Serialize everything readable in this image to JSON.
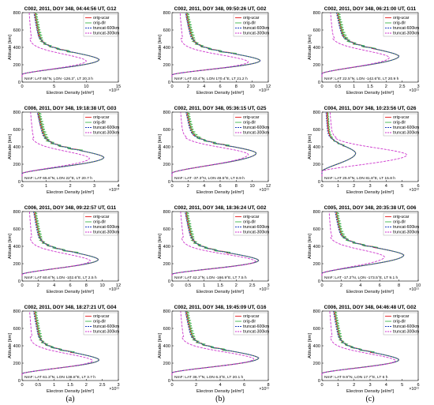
{
  "legend_labels": [
    "orig-ucar",
    "orig-dlr",
    "truncat-600km",
    "truncat-300km"
  ],
  "series_colors": [
    "#e41a1c",
    "#3cb44b",
    "#1f3fbf",
    "#cc33cc"
  ],
  "column_labels": [
    "(a)",
    "(b)",
    "(c)"
  ],
  "chart_data": [
    {
      "type": "line",
      "title": "C002, 2011, DOY 348, 04:44:56 UT, G12",
      "xlabel": "Electron Density [el/m³]",
      "ylabel": "Altitude [km]",
      "multiplier": "×10¹⁰",
      "note": "NmF: LAT 65°N, LON -126.3°, LT 20.3 h",
      "xlim": [
        0,
        15
      ],
      "ylim": [
        0,
        800
      ],
      "xticks": [
        "0",
        "5",
        "10",
        "15"
      ],
      "yticks": [
        "0",
        "200",
        "400",
        "600",
        "800"
      ],
      "peak": {
        "n": 12,
        "h": 260,
        "h0": 90,
        "top": 0.3,
        "w": 0.85
      },
      "trunc300": {
        "n": 10,
        "h": 245
      }
    },
    {
      "type": "line",
      "title": "C002, 2011, DOY 348, 09:50:26 UT, G02",
      "xlabel": "Electron Density [el/m³]",
      "ylabel": "Altitude [km]",
      "multiplier": "×10¹⁰",
      "note": "NmF: LAT 43.4°N, LON 170.4°E, LT 21.2 h",
      "xlim": [
        0,
        12
      ],
      "ylim": [
        0,
        800
      ],
      "xticks": [
        "0",
        "2",
        "4",
        "6",
        "8",
        "10",
        "12"
      ],
      "yticks": [
        "0",
        "200",
        "400",
        "600",
        "800"
      ],
      "peak": {
        "n": 11,
        "h": 250,
        "h0": 85,
        "top": 0.3,
        "w": 0.8
      },
      "trunc300": {
        "n": 9.5,
        "h": 235
      }
    },
    {
      "type": "line",
      "title": "C002, 2011, DOY 348, 06:21:00 UT, G11",
      "xlabel": "Electron Density [el/m³]",
      "ylabel": "Altitude [km]",
      "multiplier": "×10¹¹",
      "note": "NmF: LAT 22.5°N, LON -142.6°E, LT 20.9 h",
      "xlim": [
        0,
        3
      ],
      "ylim": [
        0,
        800
      ],
      "xticks": [
        "0",
        "0.5",
        "1",
        "1.5",
        "2",
        "2.5",
        "3"
      ],
      "yticks": [
        "0",
        "200",
        "400",
        "600",
        "800"
      ],
      "peak": {
        "n": 2.4,
        "h": 300,
        "h0": 100,
        "top": 0.35,
        "w": 0.85
      },
      "trunc300": {
        "n": 2.1,
        "h": 285
      }
    },
    {
      "type": "line",
      "title": "C006, 2011, DOY 348, 19:18:38 UT, G03",
      "xlabel": "Electron Density [el/m³]",
      "ylabel": "Altitude [km]",
      "multiplier": "×10¹⁰",
      "note": "NmF: LAT 65.6°N, LON 22°E, LT 20.7 h",
      "xlim": [
        0,
        4
      ],
      "ylim": [
        0,
        800
      ],
      "xticks": [
        "0",
        "1",
        "2",
        "3",
        "4"
      ],
      "yticks": [
        "0",
        "200",
        "400",
        "600",
        "800"
      ],
      "peak": {
        "n": 3.4,
        "h": 280,
        "h0": 95,
        "top": 0.35,
        "w": 0.85
      },
      "trunc300": {
        "n": 2.8,
        "h": 270
      }
    },
    {
      "type": "line",
      "title": "C002, 2011, DOY 348, 05:36:15 UT, G25",
      "xlabel": "Electron Density [el/m³]",
      "ylabel": "Altitude [km]",
      "multiplier": "×10¹¹",
      "note": "NmF: LAT -37.3°N, LON 49.5°E, LT 8.9 h",
      "xlim": [
        0,
        12
      ],
      "ylim": [
        0,
        800
      ],
      "xticks": [
        "0",
        "2",
        "4",
        "6",
        "8",
        "10",
        "12"
      ],
      "yticks": [
        "0",
        "200",
        "400",
        "600",
        "800"
      ],
      "peak": {
        "n": 10.5,
        "h": 330,
        "h0": 100,
        "top": 0.3,
        "w": 0.9
      },
      "trunc300": {
        "n": 9.5,
        "h": 315
      }
    },
    {
      "type": "line",
      "title": "C004, 2011, DOY 348, 10:23:56 UT, G26",
      "xlabel": "Electron Density [el/m³]",
      "ylabel": "Altitude [km]",
      "multiplier": "×10¹²",
      "note": "NmF: LAT 25.9°N, LON 81.8°E, LT 15.8 h",
      "xlim": [
        0,
        6
      ],
      "ylim": [
        0,
        800
      ],
      "xticks": [
        "0",
        "1",
        "2",
        "3",
        "4",
        "5",
        "6"
      ],
      "yticks": [
        "0",
        "200",
        "400",
        "600",
        "800"
      ],
      "peak": {
        "n": 2.1,
        "h": 330,
        "h0": 120,
        "top": 0.25,
        "w": 0.7
      },
      "trunc300": {
        "n": 5.3,
        "h": 310
      }
    },
    {
      "type": "line",
      "title": "C006, 2011, DOY 348, 09:22:57 UT, G11",
      "xlabel": "Electron Density [el/m³]",
      "ylabel": "Altitude [km]",
      "multiplier": "×10¹⁰",
      "note": "NmF: LAT 60.6°N, LON -102.6°E, LT 2.5 h",
      "xlim": [
        0,
        12
      ],
      "ylim": [
        0,
        800
      ],
      "xticks": [
        "0",
        "2",
        "4",
        "6",
        "8",
        "10",
        "12"
      ],
      "yticks": [
        "0",
        "200",
        "400",
        "600",
        "800"
      ],
      "peak": {
        "n": 9.5,
        "h": 250,
        "h0": 80,
        "top": 0.3,
        "w": 0.9
      },
      "trunc300": {
        "n": 8.5,
        "h": 235
      }
    },
    {
      "type": "line",
      "title": "C002, 2011, DOY 348, 18:36:24 UT, G02",
      "xlabel": "Electron Density [el/m³]",
      "ylabel": "Altitude [km]",
      "multiplier": "×10¹¹",
      "note": "NmF: LAT 42.2°N, LON -166.9°E, LT 7.5 h",
      "xlim": [
        0,
        3
      ],
      "ylim": [
        0,
        800
      ],
      "xticks": [
        "0",
        "0.5",
        "1",
        "1.5",
        "2",
        "2.5",
        "3"
      ],
      "yticks": [
        "0",
        "200",
        "400",
        "600",
        "800"
      ],
      "peak": {
        "n": 2.7,
        "h": 240,
        "h0": 80,
        "top": 0.3,
        "w": 0.75
      },
      "trunc300": {
        "n": 2.6,
        "h": 230
      }
    },
    {
      "type": "line",
      "title": "C005, 2011, DOY 348, 20:35:38 UT, G06",
      "xlabel": "Electron Density [el/m³]",
      "ylabel": "Altitude [km]",
      "multiplier": "×10¹¹",
      "note": "NmF: LAT -17.2°N, LON -173.5°E, LT 9.1 h",
      "xlim": [
        0,
        10
      ],
      "ylim": [
        0,
        800
      ],
      "xticks": [
        "0",
        "2",
        "4",
        "6",
        "8",
        "10"
      ],
      "yticks": [
        "0",
        "200",
        "400",
        "600",
        "800"
      ],
      "peak": {
        "n": 8.5,
        "h": 300,
        "h0": 90,
        "top": 0.3,
        "w": 0.9
      },
      "trunc300": {
        "n": 6.5,
        "h": 280
      }
    },
    {
      "type": "line",
      "title": "C002, 2011, DOY 348, 18:27:21 UT, G04",
      "xlabel": "Electron Density [el/m³]",
      "ylabel": "Altitude [km]",
      "multiplier": "×10¹¹",
      "note": "NmF: LAT 61.3°N, LON 138.8°E, LT 3.7 h",
      "xlim": [
        0,
        3
      ],
      "ylim": [
        0,
        800
      ],
      "xticks": [
        "0",
        "0.5",
        "1",
        "1.5",
        "2",
        "2.5",
        "3"
      ],
      "yticks": [
        "0",
        "200",
        "400",
        "600",
        "800"
      ],
      "peak": {
        "n": 2.4,
        "h": 240,
        "h0": 80,
        "top": 0.3,
        "w": 0.8
      },
      "trunc300": {
        "n": 2.2,
        "h": 230
      }
    },
    {
      "type": "line",
      "title": "C002, 2011, DOY 348, 19:45:09 UT, G16",
      "xlabel": "Electron Density [el/m³]",
      "ylabel": "Altitude [km]",
      "multiplier": "×10¹¹",
      "note": "NmF: LAT 36.7°N, LON 6.3°E, LT 20.1 h",
      "xlim": [
        0,
        8
      ],
      "ylim": [
        0,
        800
      ],
      "xticks": [
        "0",
        "2",
        "4",
        "6",
        "8"
      ],
      "yticks": [
        "0",
        "200",
        "400",
        "600",
        "800"
      ],
      "peak": {
        "n": 7.2,
        "h": 260,
        "h0": 90,
        "top": 0.3,
        "w": 0.8
      },
      "trunc300": {
        "n": 6.8,
        "h": 250
      }
    },
    {
      "type": "line",
      "title": "C006, 2011, DOY 348, 04:46:48 UT, G02",
      "xlabel": "Electron Density [el/m³]",
      "ylabel": "Altitude [km]",
      "multiplier": "×10¹¹",
      "note": "NmF: LAT 9.9°N, LON 17.7°E, LT 6 h",
      "xlim": [
        0,
        6
      ],
      "ylim": [
        0,
        800
      ],
      "xticks": [
        "0",
        "1",
        "2",
        "3",
        "4",
        "5",
        "6"
      ],
      "yticks": [
        "0",
        "200",
        "400",
        "600",
        "800"
      ],
      "peak": {
        "n": 4.8,
        "h": 240,
        "h0": 85,
        "top": 0.3,
        "w": 0.8
      },
      "trunc300": {
        "n": 4.6,
        "h": 230
      }
    }
  ]
}
